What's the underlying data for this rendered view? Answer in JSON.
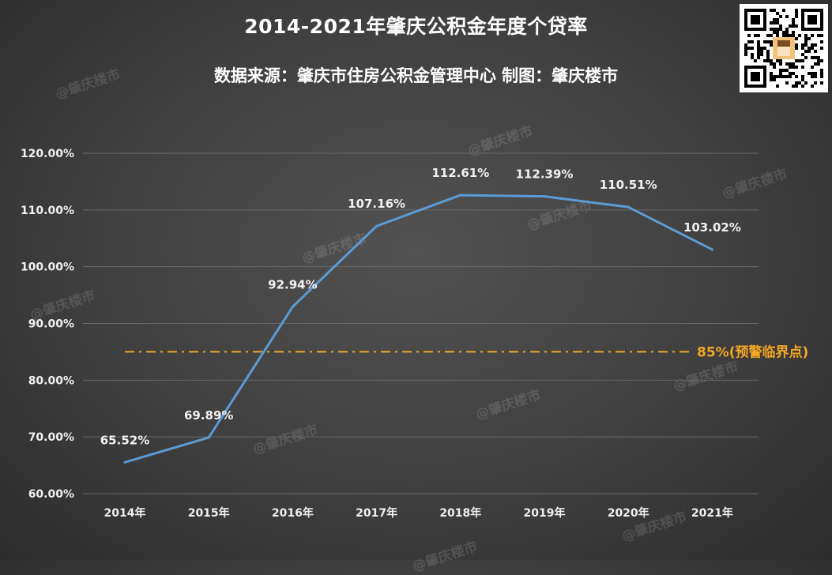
{
  "title": "2014-2021年肇庆公积金年度个贷率",
  "subtitle": "数据来源：肇庆市住房公积金管理中心  制图：肇庆楼市",
  "watermark": "@肇庆楼市",
  "chart_data": {
    "type": "line",
    "title": "2014-2021年肇庆公积金年度个贷率",
    "subtitle": "数据来源：肇庆市住房公积金管理中心  制图：肇庆楼市",
    "categories": [
      "2014年",
      "2015年",
      "2016年",
      "2017年",
      "2018年",
      "2019年",
      "2020年",
      "2021年"
    ],
    "values": [
      65.52,
      69.89,
      92.94,
      107.16,
      112.61,
      112.39,
      110.51,
      103.02
    ],
    "data_labels": [
      "65.52%",
      "69.89%",
      "92.94%",
      "107.16%",
      "112.61%",
      "112.39%",
      "110.51%",
      "103.02%"
    ],
    "ylim": [
      60,
      120
    ],
    "yticks": [
      60,
      70,
      80,
      90,
      100,
      110,
      120
    ],
    "ytick_labels": [
      "60.00%",
      "70.00%",
      "80.00%",
      "90.00%",
      "100.00%",
      "110.00%",
      "120.00%"
    ],
    "grid": true,
    "legend": "none",
    "reference_line": {
      "value": 85,
      "label": "85%(预警临界点)",
      "style": "dash-dot",
      "color": "#f5a623"
    },
    "colors": {
      "line": "#5b9bd5",
      "grid": "#6a6a6a",
      "text": "#f0f0f0"
    }
  }
}
